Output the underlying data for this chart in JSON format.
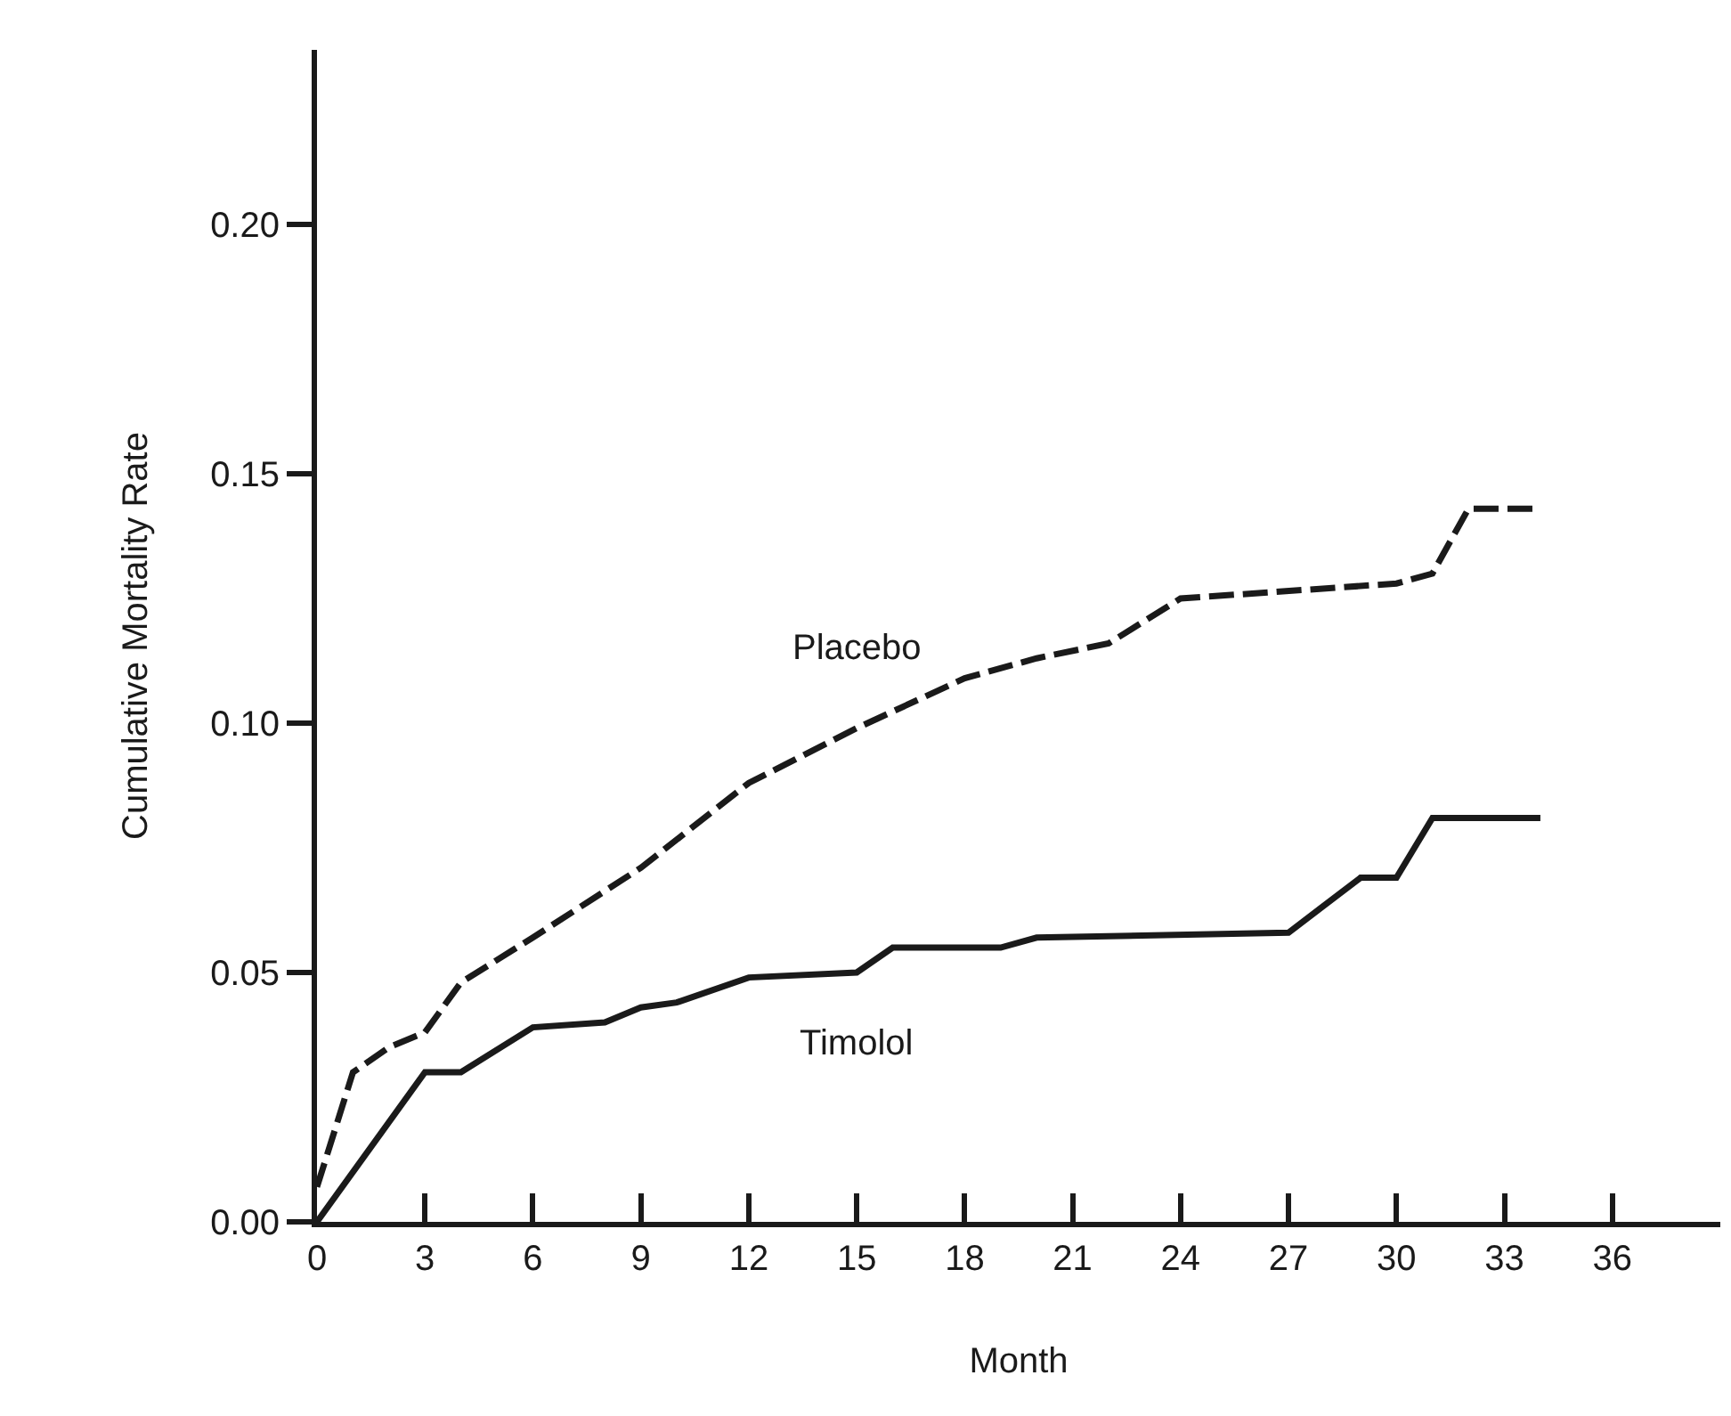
{
  "chart_data": {
    "type": "line",
    "xlabel": "Month",
    "ylabel": "Cumulative Mortality Rate",
    "xlim": [
      0,
      39
    ],
    "xticks": [
      0,
      3,
      6,
      9,
      12,
      15,
      18,
      21,
      24,
      27,
      30,
      33,
      36
    ],
    "ylim": [
      0,
      0.235
    ],
    "yticks": [
      {
        "value": 0,
        "label": "0.00"
      },
      {
        "value": 0.05,
        "label": "0.05"
      },
      {
        "value": 0.1,
        "label": "0.10"
      },
      {
        "value": 0.15,
        "label": "0.15"
      },
      {
        "value": 0.2,
        "label": "0.20"
      }
    ],
    "grid": false,
    "legend": false,
    "marker": "none",
    "color": "#1a1a1a",
    "series": [
      {
        "name": "Placebo",
        "line_style": "dashed",
        "x": [
          0,
          1,
          2,
          3,
          4,
          6,
          9,
          12,
          15,
          18,
          20,
          22,
          24,
          30,
          31,
          32,
          34
        ],
        "values": [
          0.007,
          0.03,
          0.035,
          0.038,
          0.048,
          0.057,
          0.071,
          0.088,
          0.099,
          0.109,
          0.113,
          0.116,
          0.125,
          0.128,
          0.13,
          0.143,
          0.143
        ]
      },
      {
        "name": "Timolol",
        "line_style": "solid",
        "x": [
          0,
          3,
          4,
          6,
          8,
          9,
          10,
          12,
          15,
          16,
          19,
          20,
          27,
          29,
          30,
          31,
          34
        ],
        "values": [
          0,
          0.03,
          0.03,
          0.039,
          0.04,
          0.043,
          0.044,
          0.049,
          0.05,
          0.055,
          0.055,
          0.057,
          0.058,
          0.069,
          0.069,
          0.081,
          0.081
        ]
      }
    ]
  }
}
